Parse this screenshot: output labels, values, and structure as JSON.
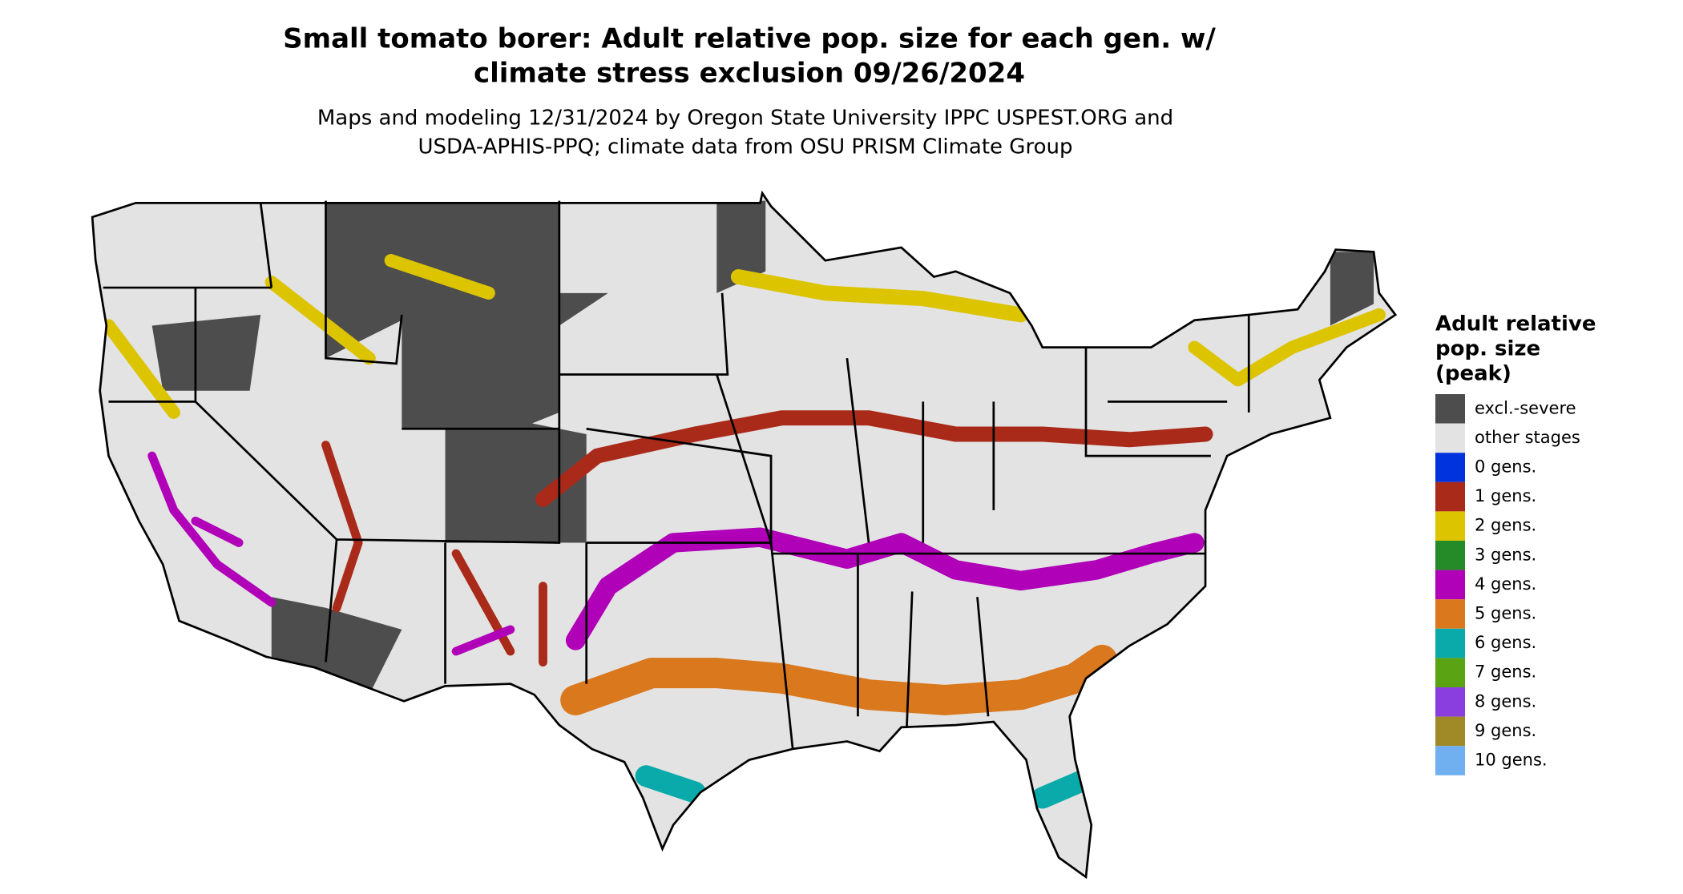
{
  "header": {
    "title_lines": [
      "Small tomato borer: Adult relative pop. size for each gen. w/",
      "climate stress exclusion 09/26/2024"
    ],
    "subtitle_lines": [
      "Maps and modeling 12/31/2024 by Oregon State University IPPC USPEST.ORG and",
      "USDA-APHIS-PPQ; climate data from OSU PRISM Climate Group"
    ]
  },
  "legend": {
    "title_lines": [
      "Adult relative",
      "pop. size",
      "(peak)"
    ],
    "items": [
      {
        "label": "excl.-severe",
        "color": "#4d4d4d"
      },
      {
        "label": "other stages",
        "color": "#e3e3e3"
      },
      {
        "label": "0 gens.",
        "color": "#0033dd"
      },
      {
        "label": "1 gens.",
        "color": "#aa2a1a"
      },
      {
        "label": "2 gens.",
        "color": "#dcc400"
      },
      {
        "label": "3 gens.",
        "color": "#258a28"
      },
      {
        "label": "4 gens.",
        "color": "#b000b8"
      },
      {
        "label": "5 gens.",
        "color": "#d9781c"
      },
      {
        "label": "6 gens.",
        "color": "#0aaaaa"
      },
      {
        "label": "7 gens.",
        "color": "#5aa312"
      },
      {
        "label": "8 gens.",
        "color": "#8a3ee0"
      },
      {
        "label": "9 gens.",
        "color": "#a08a28"
      },
      {
        "label": "10 gens.",
        "color": "#70b0f0"
      }
    ]
  }
}
